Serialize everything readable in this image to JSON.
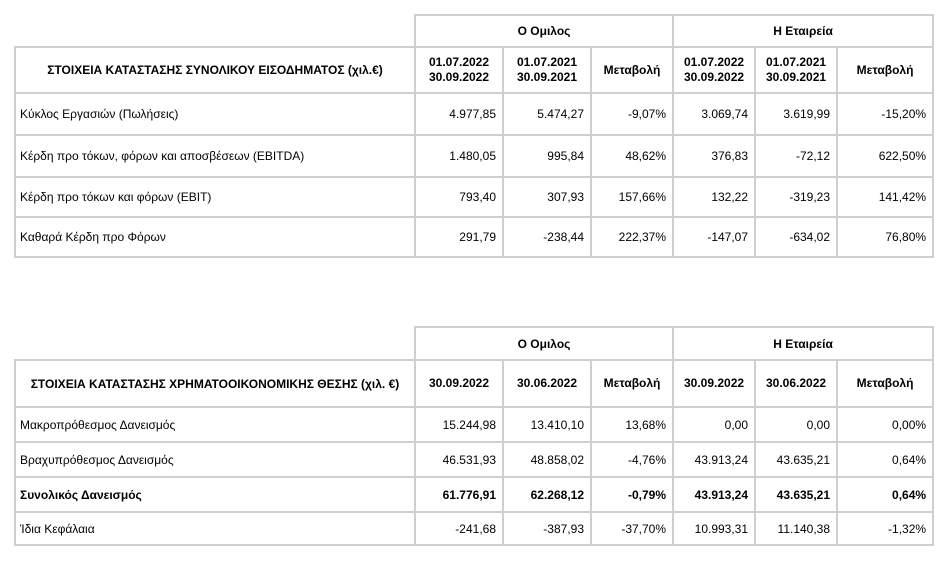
{
  "income": {
    "group_labels": {
      "group": "Ο Ομιλος",
      "company": "Η Εταιρεία"
    },
    "title": "ΣΤΟΙΧΕΙΑ ΚΑΤΑΣΤΑΣΗΣ ΣΥΝΟΛΙΚΟΥ ΕΙΣΟΔΗΜΑΤΟΣ (χιλ.€)",
    "columns": [
      {
        "line1": "01.07.2022",
        "line2": "30.09.2022"
      },
      {
        "line1": "01.07.2021",
        "line2": "30.09.2021"
      },
      {
        "line1": "Μεταβολή",
        "line2": ""
      },
      {
        "line1": "01.07.2022",
        "line2": "30.09.2022"
      },
      {
        "line1": "01.07.2021",
        "line2": "30.09.2021"
      },
      {
        "line1": "Μεταβολή",
        "line2": ""
      }
    ],
    "rows": [
      {
        "label": "Κύκλος Εργασιών (Πωλήσεις)",
        "values": [
          "4.977,85",
          "5.474,27",
          "-9,07%",
          "3.069,74",
          "3.619,99",
          "-15,20%"
        ]
      },
      {
        "label": "Κέρδη προ τόκων, φόρων και αποσβέσεων (EBITDA)",
        "values": [
          "1.480,05",
          "995,84",
          "48,62%",
          "376,83",
          "-72,12",
          "622,50%"
        ]
      },
      {
        "label": "Κέρδη προ τόκων και φόρων (EBIT)",
        "values": [
          "793,40",
          "307,93",
          "157,66%",
          "132,22",
          "-319,23",
          "141,42%"
        ]
      },
      {
        "label": "Καθαρά Κέρδη προ Φόρων",
        "values": [
          "291,79",
          "-238,44",
          "222,37%",
          "-147,07",
          "-634,02",
          "76,80%"
        ]
      }
    ]
  },
  "balance": {
    "group_labels": {
      "group": "Ο Ομιλος",
      "company": "Η Εταιρεία"
    },
    "title": "ΣΤΟΙΧΕΙΑ ΚΑΤΑΣΤΑΣΗΣ ΧΡΗΜΑΤΟΟΙΚΟΝΟΜΙΚΗΣ ΘΕΣΗΣ (χιλ. €)",
    "columns": [
      "30.09.2022",
      "30.06.2022",
      "Μεταβολή",
      "30.09.2022",
      "30.06.2022",
      "Μεταβολή"
    ],
    "rows": [
      {
        "label": "Μακροπρόθεσμος Δανεισμός",
        "values": [
          "15.244,98",
          "13.410,10",
          "13,68%",
          "0,00",
          "0,00",
          "0,00%"
        ]
      },
      {
        "label": "Βραχυπρόθεσμος Δανεισμός",
        "values": [
          "46.531,93",
          "48.858,02",
          "-4,76%",
          "43.913,24",
          "43.635,21",
          "0,64%"
        ]
      },
      {
        "label": "Συνολικός Δανεισμός",
        "values": [
          "61.776,91",
          "62.268,12",
          "-0,79%",
          "43.913,24",
          "43.635,21",
          "0,64%"
        ]
      },
      {
        "label": "Ίδια Κεφάλαια",
        "values": [
          "-241,68",
          "-387,93",
          "-37,70%",
          "10.993,31",
          "11.140,38",
          "-1,32%"
        ]
      }
    ]
  }
}
